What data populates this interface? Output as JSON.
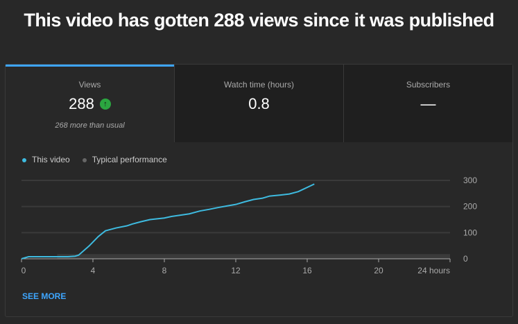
{
  "title": "This video has gotten 288 views since it was published",
  "tabs": [
    {
      "label": "Views",
      "value": "288",
      "note": "268 more than usual",
      "icon": "arrow-up-icon"
    },
    {
      "label": "Watch time (hours)",
      "value": "0.8"
    },
    {
      "label": "Subscribers",
      "value": "—"
    }
  ],
  "legend": {
    "this_video": "This video",
    "typical": "Typical performance"
  },
  "see_more": "SEE MORE",
  "colors": {
    "accent": "#3ea6ff",
    "line": "#3ebbe0",
    "up": "#2ba640"
  },
  "chart_data": {
    "type": "line",
    "xlabel": "hours",
    "xlim": [
      0,
      24
    ],
    "ylim": [
      0,
      300
    ],
    "xticks": [
      {
        "v": 0,
        "label": "0"
      },
      {
        "v": 4,
        "label": "4"
      },
      {
        "v": 8,
        "label": "8"
      },
      {
        "v": 12,
        "label": "12"
      },
      {
        "v": 16,
        "label": "16"
      },
      {
        "v": 20,
        "label": "20"
      },
      {
        "v": 24,
        "label": "24 hours"
      }
    ],
    "yticks": [
      {
        "v": 0,
        "label": "0"
      },
      {
        "v": 100,
        "label": "100"
      },
      {
        "v": 200,
        "label": "200"
      },
      {
        "v": 300,
        "label": "300"
      }
    ],
    "series": [
      {
        "name": "This video",
        "x": [
          0,
          0.4,
          2.6,
          3,
          3.2,
          3.8,
          4.3,
          4.7,
          5.3,
          5.9,
          6.2,
          6.7,
          7.2,
          7.6,
          8,
          8.4,
          8.8,
          9.4,
          10,
          10.5,
          11,
          11.5,
          12,
          12.5,
          13,
          13.5,
          13.9,
          14.5,
          15,
          15.5,
          16.4
        ],
        "y": [
          0,
          8,
          8,
          10,
          14,
          50,
          85,
          107,
          118,
          126,
          133,
          142,
          150,
          153,
          156,
          162,
          166,
          172,
          183,
          189,
          196,
          202,
          208,
          218,
          227,
          232,
          240,
          244,
          248,
          257,
          286
        ]
      },
      {
        "name": "Typical performance",
        "band": {
          "x": [
            2,
            24
          ],
          "y": [
            0,
            18
          ]
        }
      }
    ]
  }
}
